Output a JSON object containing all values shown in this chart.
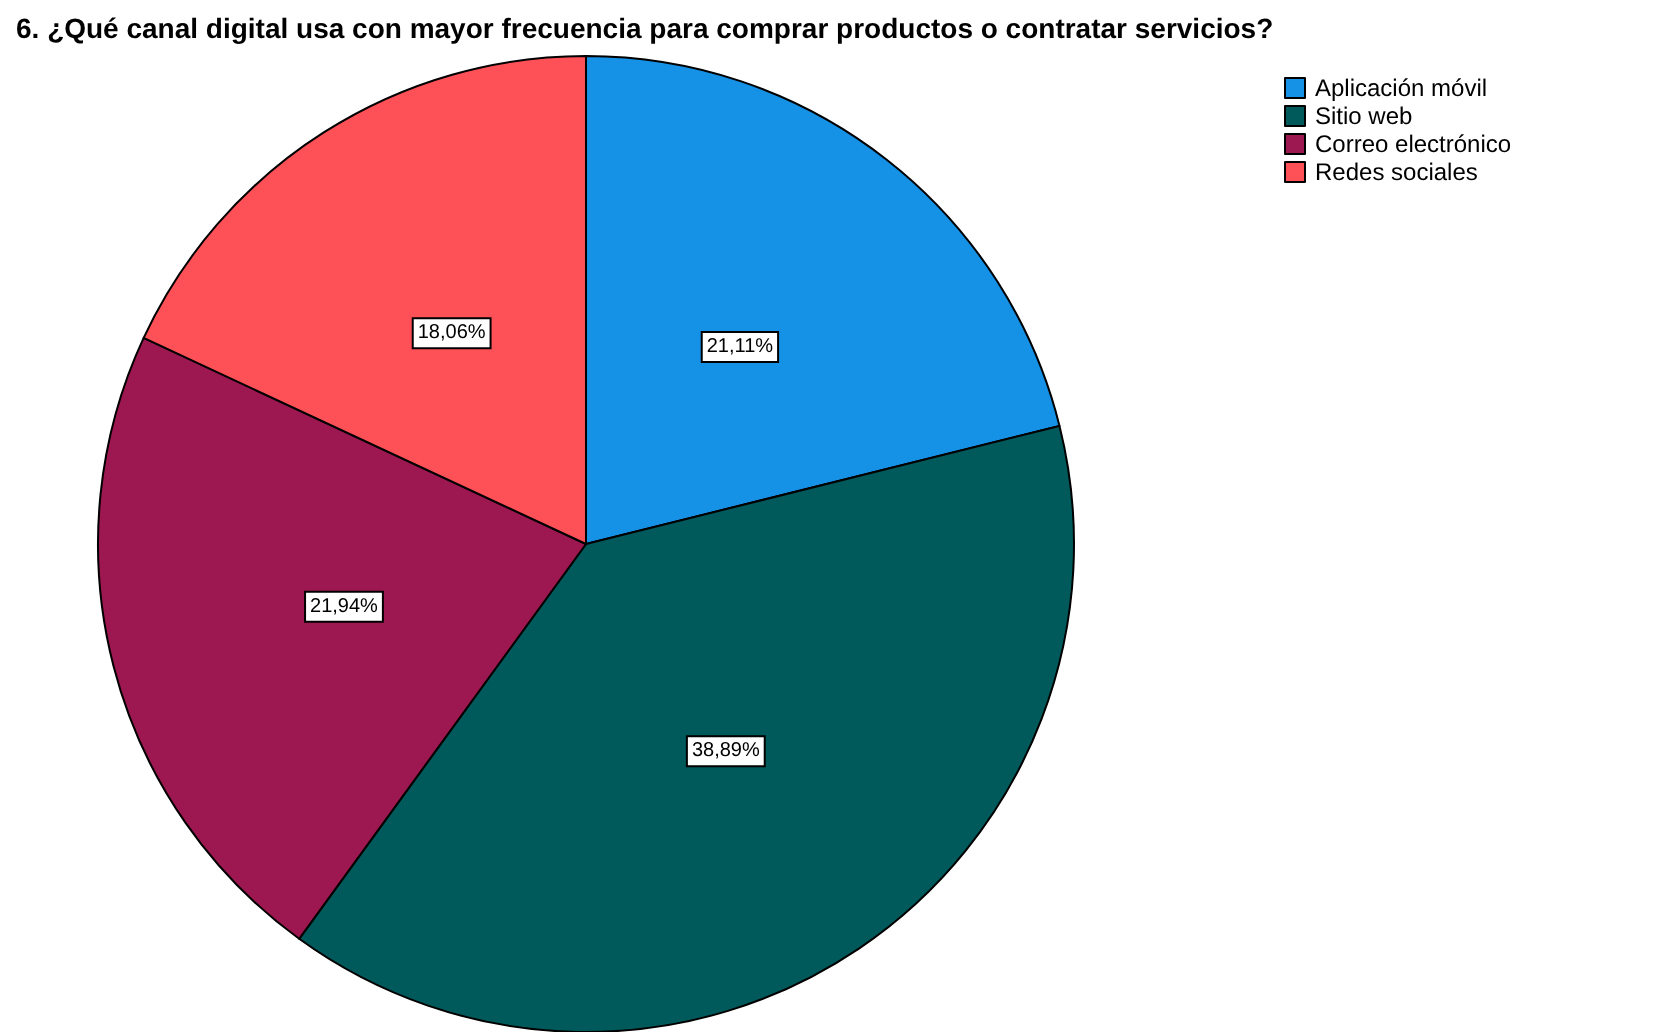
{
  "chart_data": {
    "type": "pie",
    "title": "6. ¿Qué canal digital usa con mayor frecuencia para comprar productos o contratar servicios?",
    "categories": [
      "Aplicación móvil",
      "Sitio web",
      "Correo electrónico",
      "Redes sociales"
    ],
    "values": [
      21.11,
      38.89,
      21.94,
      18.06
    ],
    "colors": [
      "#1591e6",
      "#00595b",
      "#9d1750",
      "#fe5157"
    ],
    "value_labels": [
      "21,11%",
      "38,89%",
      "21,94%",
      "18,06%"
    ],
    "legend": "top right"
  }
}
